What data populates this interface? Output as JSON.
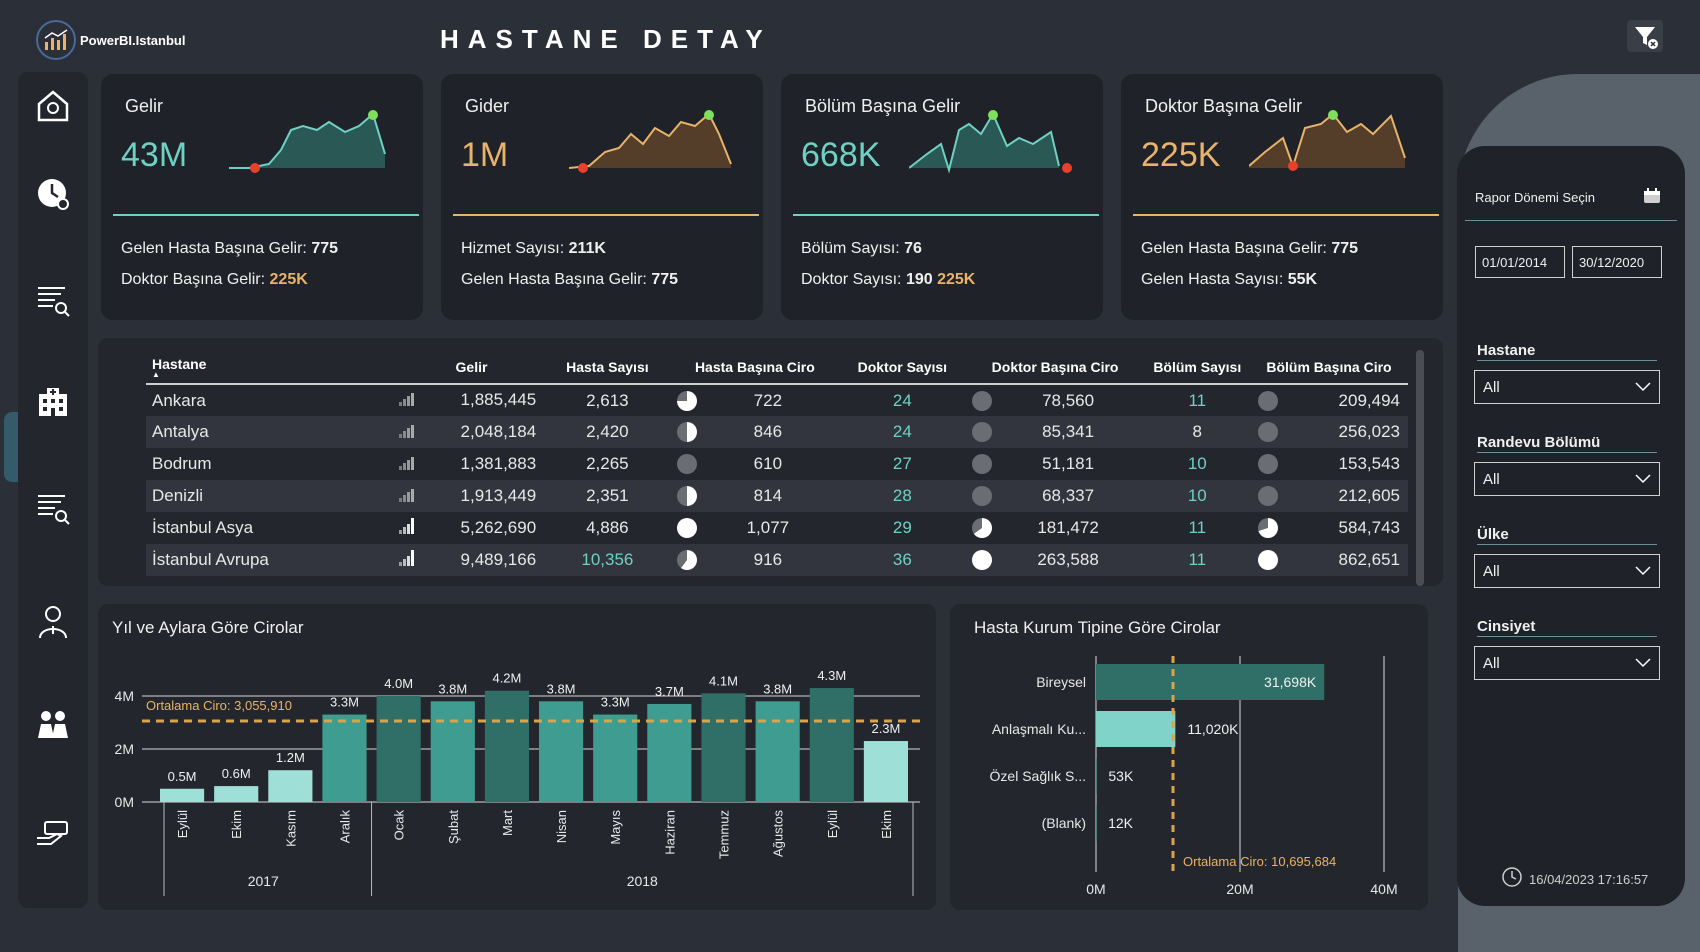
{
  "header": {
    "logo_text": "PowerBI.Istanbul",
    "title": "HASTANE DETAY"
  },
  "kpis": [
    {
      "title": "Gelir",
      "value": "43M",
      "color": "#6fd0c4",
      "sub1_label": "Gelen Hasta Başına Gelir:",
      "sub1_value": "775",
      "sub2_label": "Doktor Başına Gelir:",
      "sub2_value": "225K"
    },
    {
      "title": "Gider",
      "value": "1M",
      "color": "#e8b36a",
      "sub1_label": "Hizmet Sayısı:",
      "sub1_value": "211K",
      "sub2_label": "Gelen Hasta Başına Gelir:",
      "sub2_value": "775"
    },
    {
      "title": "Bölüm Başına Gelir",
      "value": "668K",
      "color": "#6fd0c4",
      "sub1_label": "Bölüm Sayısı:",
      "sub1_value": "76",
      "sub2_label": "Doktor Sayısı:",
      "sub2_value": "190",
      "sub2_value2": "225K"
    },
    {
      "title": "Doktor Başına Gelir",
      "value": "225K",
      "color": "#e8b36a",
      "sub1_label": "Gelen Hasta Başına Gelir:",
      "sub1_value": "775",
      "sub2_label": "Gelen Hasta Sayısı:",
      "sub2_value": "55K"
    }
  ],
  "table": {
    "columns": [
      "Hastane",
      "Gelir",
      "Hasta Sayısı",
      "Hasta Başına Ciro",
      "Doktor Sayısı",
      "Doktor Başına Ciro",
      "Bölüm Sayısı",
      "Bölüm Başına Ciro"
    ],
    "rows": [
      {
        "hastane": "Ankara",
        "gelir": "1,885,445",
        "hasta": "2,613",
        "hbc": "722",
        "doktor": "24",
        "dbc": "78,560",
        "bolum": "11",
        "bbc": "209,494"
      },
      {
        "hastane": "Antalya",
        "gelir": "2,048,184",
        "hasta": "2,420",
        "hbc": "846",
        "doktor": "24",
        "dbc": "85,341",
        "bolum": "8",
        "bbc": "256,023"
      },
      {
        "hastane": "Bodrum",
        "gelir": "1,381,883",
        "hasta": "2,265",
        "hbc": "610",
        "doktor": "27",
        "dbc": "51,181",
        "bolum": "10",
        "bbc": "153,543"
      },
      {
        "hastane": "Denizli",
        "gelir": "1,913,449",
        "hasta": "2,351",
        "hbc": "814",
        "doktor": "28",
        "dbc": "68,337",
        "bolum": "10",
        "bbc": "212,605"
      },
      {
        "hastane": "İstanbul Asya",
        "gelir": "5,262,690",
        "hasta": "4,886",
        "hbc": "1,077",
        "doktor": "29",
        "dbc": "181,472",
        "bolum": "11",
        "bbc": "584,743"
      },
      {
        "hastane": "İstanbul Avrupa",
        "gelir": "9,489,166",
        "hasta": "10,356",
        "hbc": "916",
        "doktor": "36",
        "dbc": "263,588",
        "bolum": "11",
        "bbc": "862,651"
      }
    ]
  },
  "chart_data": [
    {
      "type": "bar",
      "title": "Yıl ve Aylara Göre Cirolar",
      "categories": [
        "Eylül",
        "Ekim",
        "Kasım",
        "Aralık",
        "Ocak",
        "Şubat",
        "Mart",
        "Nisan",
        "Mayıs",
        "Haziran",
        "Temmuz",
        "Ağustos",
        "Eylül",
        "Ekim"
      ],
      "groups": [
        {
          "label": "2017",
          "count": 4
        },
        {
          "label": "2018",
          "count": 10
        }
      ],
      "values": [
        0.5,
        0.6,
        1.2,
        3.3,
        4.0,
        3.8,
        4.2,
        3.8,
        3.3,
        3.7,
        4.1,
        3.8,
        4.3,
        2.3
      ],
      "data_labels": [
        "0.5M",
        "0.6M",
        "1.2M",
        "3.3M",
        "4.0M",
        "3.8M",
        "4.2M",
        "3.8M",
        "3.3M",
        "3.7M",
        "4.1M",
        "3.8M",
        "4.3M",
        "2.3M"
      ],
      "yticks": [
        "0M",
        "2M",
        "4M"
      ],
      "ylim": [
        0,
        4.6
      ],
      "average_line": {
        "label": "Ortalama Ciro: 3,055,910",
        "value": 3.05591
      },
      "colors": [
        "#9ee0d8",
        "#9ee0d8",
        "#9ee0d8",
        "#3e9c90",
        "#2f6f68",
        "#3e9c90",
        "#2f6f68",
        "#3e9c90",
        "#3e9c90",
        "#3e9c90",
        "#2f6f68",
        "#3e9c90",
        "#2f6f68",
        "#9ee0d8"
      ]
    },
    {
      "type": "bar",
      "orientation": "horizontal",
      "title": "Hasta Kurum Tipine Göre Cirolar",
      "categories": [
        "Bireysel",
        "Anlaşmalı Ku...",
        "Özel Sağlık S...",
        "(Blank)"
      ],
      "values": [
        31698,
        11020,
        53,
        12
      ],
      "data_labels": [
        "31,698K",
        "11,020K",
        "53K",
        "12K"
      ],
      "xticks": [
        "0M",
        "20M",
        "40M"
      ],
      "xlim": [
        0,
        40000
      ],
      "average_line": {
        "label": "Ortalama Ciro: 10,695,684",
        "value": 10695.684
      },
      "colors": [
        "#2f6f68",
        "#7fd3c8",
        "#7fd3c8",
        "#7fd3c8"
      ]
    }
  ],
  "filters": {
    "date_label": "Rapor Dönemi Seçin",
    "date_start": "01/01/2014",
    "date_end": "30/12/2020",
    "items": [
      {
        "label": "Hastane",
        "value": "All"
      },
      {
        "label": "Randevu Bölümü",
        "value": "All"
      },
      {
        "label": "Ülke",
        "value": "All"
      },
      {
        "label": "Cinsiyet",
        "value": "All"
      }
    ],
    "timestamp": "16/04/2023 17:16:57"
  }
}
